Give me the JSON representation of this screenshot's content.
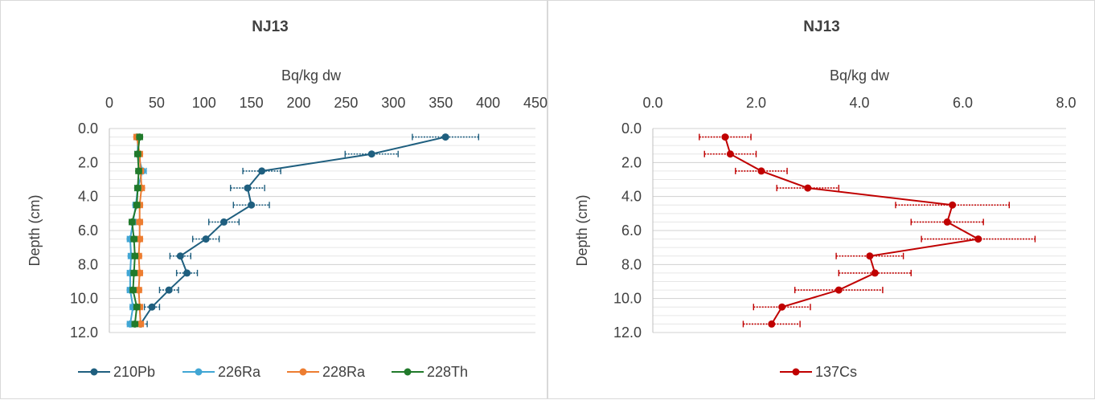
{
  "chart_data": [
    {
      "type": "line",
      "title": "NJ13",
      "xlabel": "Bq/kg dw",
      "ylabel": "Depth (cm)",
      "xlim": [
        0,
        450
      ],
      "ylim": [
        0,
        12
      ],
      "x_ticks": [
        "0",
        "50",
        "100",
        "150",
        "200",
        "250",
        "300",
        "350",
        "400",
        "450"
      ],
      "y_ticks": [
        "0.0",
        "2.0",
        "4.0",
        "6.0",
        "8.0",
        "10.0",
        "12.0"
      ],
      "x_axis_position": "top",
      "y_reversed": true,
      "gridlines": "horizontal minor every 0.5",
      "legend_position": "bottom",
      "depth": [
        0.5,
        1.5,
        2.5,
        3.5,
        4.5,
        5.5,
        6.5,
        7.5,
        8.5,
        9.5,
        10.5,
        11.5
      ],
      "series": [
        {
          "name": "210Pb",
          "color": "#1f5f7f",
          "values": [
            355,
            277,
            161,
            146,
            150,
            121,
            102,
            75,
            82,
            63,
            45,
            33
          ],
          "errors": [
            35,
            28,
            20,
            18,
            19,
            16,
            14,
            11,
            11,
            10,
            8,
            7
          ]
        },
        {
          "name": "226Ra",
          "color": "#41a6d4",
          "values": [
            30,
            30,
            35,
            30,
            28,
            25,
            22,
            23,
            22,
            22,
            25,
            22
          ],
          "errors": [
            3,
            3,
            4,
            3,
            3,
            3,
            3,
            3,
            3,
            3,
            3,
            3
          ]
        },
        {
          "name": "228Ra",
          "color": "#ed7d31",
          "values": [
            29,
            32,
            33,
            34,
            32,
            32,
            32,
            31,
            32,
            31,
            32,
            33
          ],
          "errors": [
            3,
            3,
            3,
            3,
            3,
            3,
            3,
            3,
            3,
            3,
            3,
            3
          ]
        },
        {
          "name": "228Th",
          "color": "#217a2b",
          "values": [
            32,
            30,
            31,
            30,
            29,
            24,
            26,
            27,
            26,
            25,
            29,
            27
          ],
          "errors": [
            3,
            3,
            3,
            3,
            3,
            3,
            3,
            3,
            3,
            3,
            3,
            3
          ]
        }
      ]
    },
    {
      "type": "line",
      "title": "NJ13",
      "xlabel": "Bq/kg dw",
      "ylabel": "Depth (cm)",
      "xlim": [
        0,
        8
      ],
      "ylim": [
        0,
        12
      ],
      "x_ticks": [
        "0.0",
        "2.0",
        "4.0",
        "6.0",
        "8.0"
      ],
      "y_ticks": [
        "0.0",
        "2.0",
        "4.0",
        "6.0",
        "8.0",
        "10.0",
        "12.0"
      ],
      "x_axis_position": "top",
      "y_reversed": true,
      "gridlines": "horizontal minor every 0.5",
      "legend_position": "bottom",
      "depth": [
        0.5,
        1.5,
        2.5,
        3.5,
        4.5,
        5.5,
        6.5,
        7.5,
        8.5,
        9.5,
        10.5,
        11.5
      ],
      "series": [
        {
          "name": "137Cs",
          "color": "#c00000",
          "values": [
            1.4,
            1.5,
            2.1,
            3.0,
            5.8,
            5.7,
            6.3,
            4.2,
            4.3,
            3.6,
            2.5,
            2.3
          ],
          "errors": [
            0.5,
            0.5,
            0.5,
            0.6,
            1.1,
            0.7,
            1.1,
            0.65,
            0.7,
            0.85,
            0.55,
            0.55
          ]
        }
      ]
    }
  ]
}
